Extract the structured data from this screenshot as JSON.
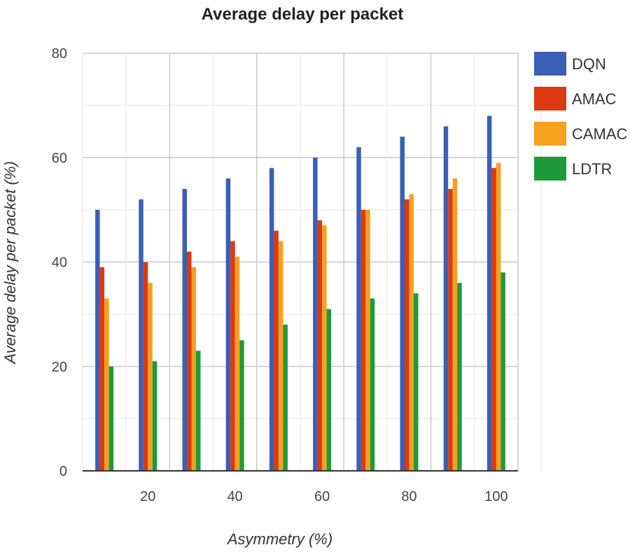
{
  "chart_data": {
    "type": "bar",
    "title": "Average delay per packet",
    "xlabel": "Asymmetry (%)",
    "ylabel": "Average delay per packet  (%)",
    "x": [
      10,
      20,
      30,
      40,
      50,
      60,
      70,
      80,
      90,
      100
    ],
    "x_tick_labels": [
      "20",
      "40",
      "60",
      "80",
      "100"
    ],
    "x_tick_values": [
      20,
      40,
      60,
      80,
      100
    ],
    "ylim": [
      0,
      80
    ],
    "y_ticks": [
      0,
      20,
      40,
      60,
      80
    ],
    "grid": true,
    "legend_position": "right",
    "series": [
      {
        "name": "DQN",
        "color": "#3b5fb5",
        "values": [
          50,
          52,
          54,
          56,
          58,
          60,
          62,
          64,
          66,
          68
        ]
      },
      {
        "name": "AMAC",
        "color": "#dc3912",
        "values": [
          39,
          40,
          42,
          44,
          46,
          48,
          50,
          52,
          54,
          58
        ]
      },
      {
        "name": "CAMAC",
        "color": "#f4a11e",
        "values": [
          33,
          36,
          39,
          41,
          44,
          47,
          50,
          53,
          56,
          59
        ]
      },
      {
        "name": "LDTR",
        "color": "#1f9a3a",
        "values": [
          20,
          21,
          23,
          25,
          28,
          31,
          33,
          34,
          36,
          38
        ]
      }
    ]
  }
}
